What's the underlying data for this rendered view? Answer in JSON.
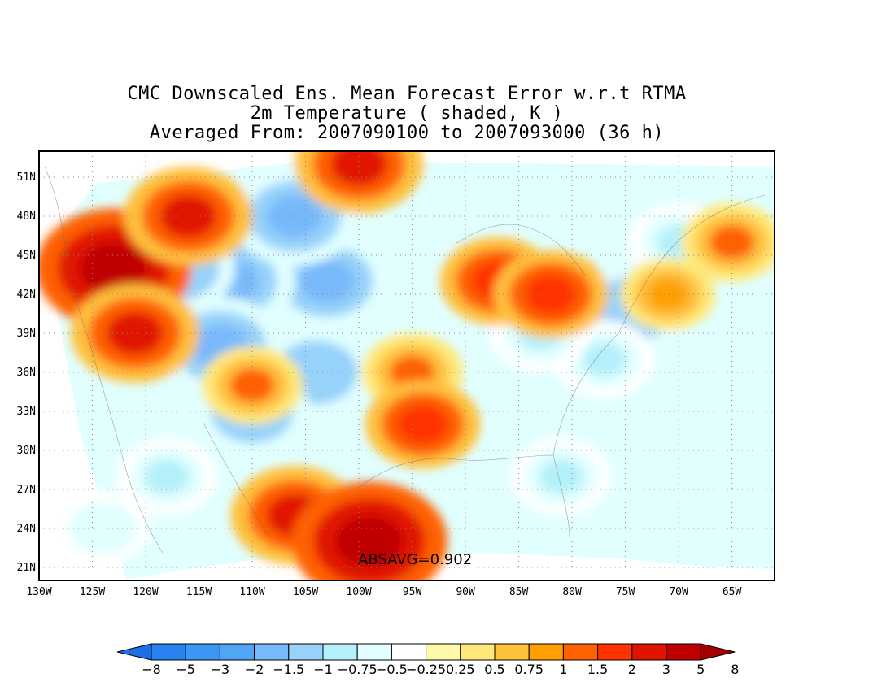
{
  "title": {
    "line1": "CMC Downscaled Ens. Mean Forecast Error w.r.t RTMA",
    "line2": "2m Temperature ( shaded, K )",
    "line3": "Averaged From: 2007090100 to 2007093000 (36 h)"
  },
  "axes": {
    "lat_labels": [
      "51N",
      "48N",
      "45N",
      "42N",
      "39N",
      "36N",
      "33N",
      "30N",
      "27N",
      "24N",
      "21N"
    ],
    "lat_values": [
      51,
      48,
      45,
      42,
      39,
      36,
      33,
      30,
      27,
      24,
      21
    ],
    "lon_labels": [
      "130W",
      "125W",
      "120W",
      "115W",
      "110W",
      "105W",
      "100W",
      "95W",
      "90W",
      "85W",
      "80W",
      "75W",
      "70W",
      "65W"
    ],
    "lon_values": [
      -130,
      -125,
      -120,
      -115,
      -110,
      -105,
      -100,
      -95,
      -90,
      -85,
      -80,
      -75,
      -70,
      -65
    ],
    "lat_range": [
      20,
      53
    ],
    "lon_range": [
      -130,
      -61
    ],
    "grid": "dotted"
  },
  "absavg": "ABSAVG=0.902",
  "colorbar": {
    "labels": [
      "-8",
      "-5",
      "-3",
      "-2",
      "-1.5",
      "-1",
      "-0.75",
      "-0.5",
      "-0.25",
      "0.25",
      "0.5",
      "0.75",
      "1",
      "1.5",
      "2",
      "3",
      "5",
      "8"
    ],
    "colors": [
      "#1e6ee6",
      "#2882f0",
      "#3c96f5",
      "#50a5f5",
      "#78b9fa",
      "#96d2fa",
      "#b4f0fa",
      "#e1ffff",
      "#ffffff",
      "#fffaaa",
      "#ffe878",
      "#ffc03c",
      "#ffa000",
      "#ff6000",
      "#ff3200",
      "#e11400",
      "#c00000",
      "#a50000"
    ]
  },
  "fields": {
    "cold": [
      {
        "lon": -108,
        "lat": 45,
        "mag": -2
      },
      {
        "lon": -103,
        "lat": 43,
        "mag": -2
      },
      {
        "lon": -112,
        "lat": 43,
        "mag": -2
      },
      {
        "lon": -106,
        "lat": 48,
        "mag": -2
      },
      {
        "lon": -113,
        "lat": 38,
        "mag": -2
      },
      {
        "lon": -104,
        "lat": 36,
        "mag": -1.5
      },
      {
        "lon": -117,
        "lat": 44,
        "mag": -1.5
      },
      {
        "lon": -110,
        "lat": 33,
        "mag": -1.5
      },
      {
        "lon": -74,
        "lat": 41,
        "mag": -1.5
      },
      {
        "lon": -77,
        "lat": 37,
        "mag": -1
      },
      {
        "lon": -83,
        "lat": 39,
        "mag": -1
      },
      {
        "lon": -70,
        "lat": 46,
        "mag": -1
      },
      {
        "lon": -81,
        "lat": 28,
        "mag": -1
      },
      {
        "lon": -118,
        "lat": 28,
        "mag": -1
      },
      {
        "lon": -124,
        "lat": 24,
        "mag": -0.75
      }
    ],
    "warm": [
      {
        "lon": -123,
        "lat": 44,
        "mag": 3
      },
      {
        "lon": -121,
        "lat": 39,
        "mag": 2
      },
      {
        "lon": -116,
        "lat": 48,
        "mag": 2
      },
      {
        "lon": -106,
        "lat": 25,
        "mag": 2
      },
      {
        "lon": -95,
        "lat": 36,
        "mag": 1
      },
      {
        "lon": -94,
        "lat": 32,
        "mag": 1.5
      },
      {
        "lon": -87,
        "lat": 43,
        "mag": 1.5
      },
      {
        "lon": -82,
        "lat": 42,
        "mag": 1.5
      },
      {
        "lon": -100,
        "lat": 52,
        "mag": 2
      },
      {
        "lon": -65,
        "lat": 46,
        "mag": 1
      },
      {
        "lon": -71,
        "lat": 42,
        "mag": 0.75
      },
      {
        "lon": -110,
        "lat": 35,
        "mag": 1
      },
      {
        "lon": -99,
        "lat": 23,
        "mag": 3
      }
    ]
  }
}
